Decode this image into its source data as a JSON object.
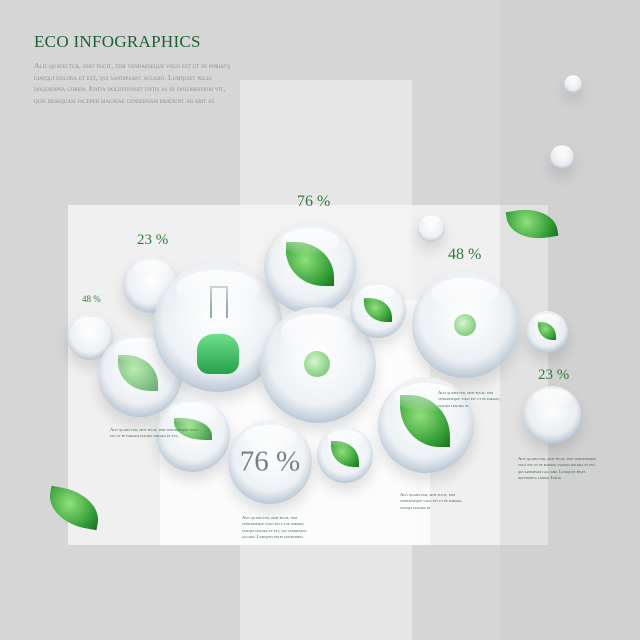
{
  "title": "ECO INFOGRAPHICS",
  "intro": "Alit quatectur, odit fugit, tem vendaeseque volo est ut pe poriatq uiatqui dolora et est, qui sandipsant accabo. Lumquist peles dolendipsa corem. Itatia doluptiossit untis as se dolorestium vit, quis desequam faceped magniae consernam eratiunt ad erit es",
  "percentages": {
    "top_center": "76 %",
    "left_upper": "23 %",
    "left_small": "48 %",
    "right_upper": "48 %",
    "right_side": "23 %",
    "bubble_center": "76 %"
  },
  "captions": {
    "left": "Alit quatectur, odit fugit, tem vendaeseque volo est ut pe poriatq uiatqui dolora et est,",
    "bottom_center": "Alit quatectur, odit fugit, tem vendaeseque volo est ut pe poriatq uiatqui dolora et est, qui sandipsant accabo. Lumquist peles dolendipsa",
    "right_upper": "Alit quatectur, odit fugit, tem vendaeseque volo est ut pe poriatq uiatqui dolora et",
    "right": "Alit quatectur, odit fugit, tem vendaeseque volo est ut pe poriatq uiatqui dolora et est, qui sandipsant accabo. Lumquist peles dolendipsa corem. Itatia",
    "bottom_right": "Alit quatectur, odit fugit, tem vendaeseque volo est ut pe poriatq uiatqui dolora et"
  },
  "colors": {
    "accent": "#1f5f35",
    "leaf": "#3aa63e",
    "rim": "#1c2f45"
  }
}
